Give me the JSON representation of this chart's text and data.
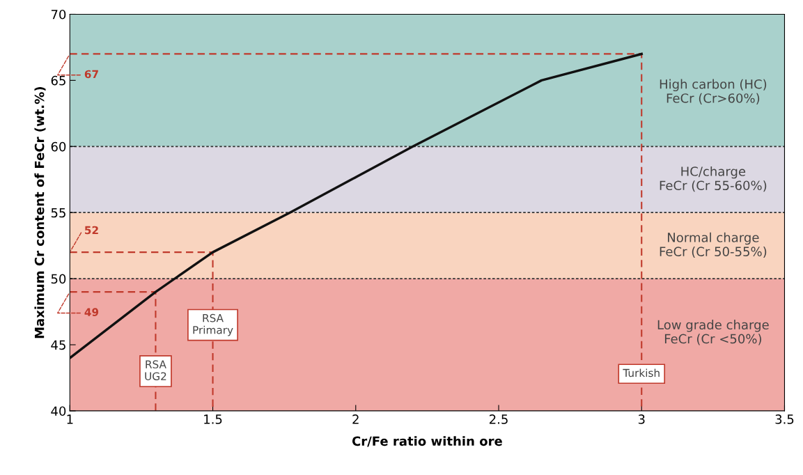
{
  "chart_data": {
    "type": "line",
    "xlabel": "Cr/Fe ratio within ore",
    "ylabel": "Maximum Cr content of FeCr (wt.%)",
    "xlim": [
      1,
      3.5
    ],
    "xticks": [
      1,
      1.5,
      2,
      2.5,
      3,
      3.5
    ],
    "ylim": [
      40,
      70
    ],
    "yticks": [
      40,
      45,
      50,
      55,
      60,
      65,
      70
    ],
    "grid": false,
    "legend": false,
    "series": [
      {
        "color": "#111111",
        "line_style": "solid",
        "x": [
          1,
          1.3,
          1.5,
          1.77,
          2.2,
          2.65,
          3
        ],
        "values": [
          44,
          49,
          52,
          55,
          60,
          65,
          67
        ]
      },
      {
        "color": "#c0392b",
        "line_style": "dashed",
        "x": [
          1,
          1.3,
          1.3
        ],
        "values": [
          49,
          49,
          40
        ]
      },
      {
        "color": "#c0392b",
        "line_style": "dashed",
        "x": [
          1,
          1.5,
          1.5
        ],
        "values": [
          52,
          52,
          40
        ]
      },
      {
        "color": "#c0392b",
        "line_style": "dashed",
        "x": [
          1,
          3,
          3
        ],
        "values": [
          67,
          67,
          40
        ]
      }
    ],
    "bands": [
      {
        "axis": "y",
        "from": 60,
        "to": 70,
        "label": "High carbon (HC)\nFeCr (Cr>60%)",
        "color": "#a9d1cc"
      },
      {
        "axis": "y",
        "from": 55,
        "to": 60,
        "label": "HC/charge\nFeCr (Cr 55-60%)",
        "color": "#dcd8e3"
      },
      {
        "axis": "y",
        "from": 50,
        "to": 55,
        "label": "Normal charge\nFeCr (Cr 50-55%)",
        "color": "#f9d4bf"
      },
      {
        "axis": "y",
        "from": 40,
        "to": 50,
        "label": "Low grade charge\nFeCr (Cr <50%)",
        "color": "#f0a9a5"
      }
    ],
    "ref_lines": [
      {
        "axis": "y",
        "value": 50,
        "color": "#333333",
        "line_style": "dotted"
      },
      {
        "axis": "y",
        "value": 55,
        "color": "#333333",
        "line_style": "dotted"
      },
      {
        "axis": "y",
        "value": 60,
        "color": "#333333",
        "line_style": "dotted"
      }
    ],
    "annotations": [
      {
        "text": "67",
        "x": 1,
        "y": 67
      },
      {
        "text": "52",
        "x": 1,
        "y": 52
      },
      {
        "text": "49",
        "x": 1,
        "y": 49
      },
      {
        "text": "RSA\nUG2",
        "x": 1.3,
        "y": 43
      },
      {
        "text": "RSA\nPrimary",
        "x": 1.5,
        "y": 46.5
      },
      {
        "text": "Turkish",
        "x": 3,
        "y": 42.8
      }
    ]
  }
}
